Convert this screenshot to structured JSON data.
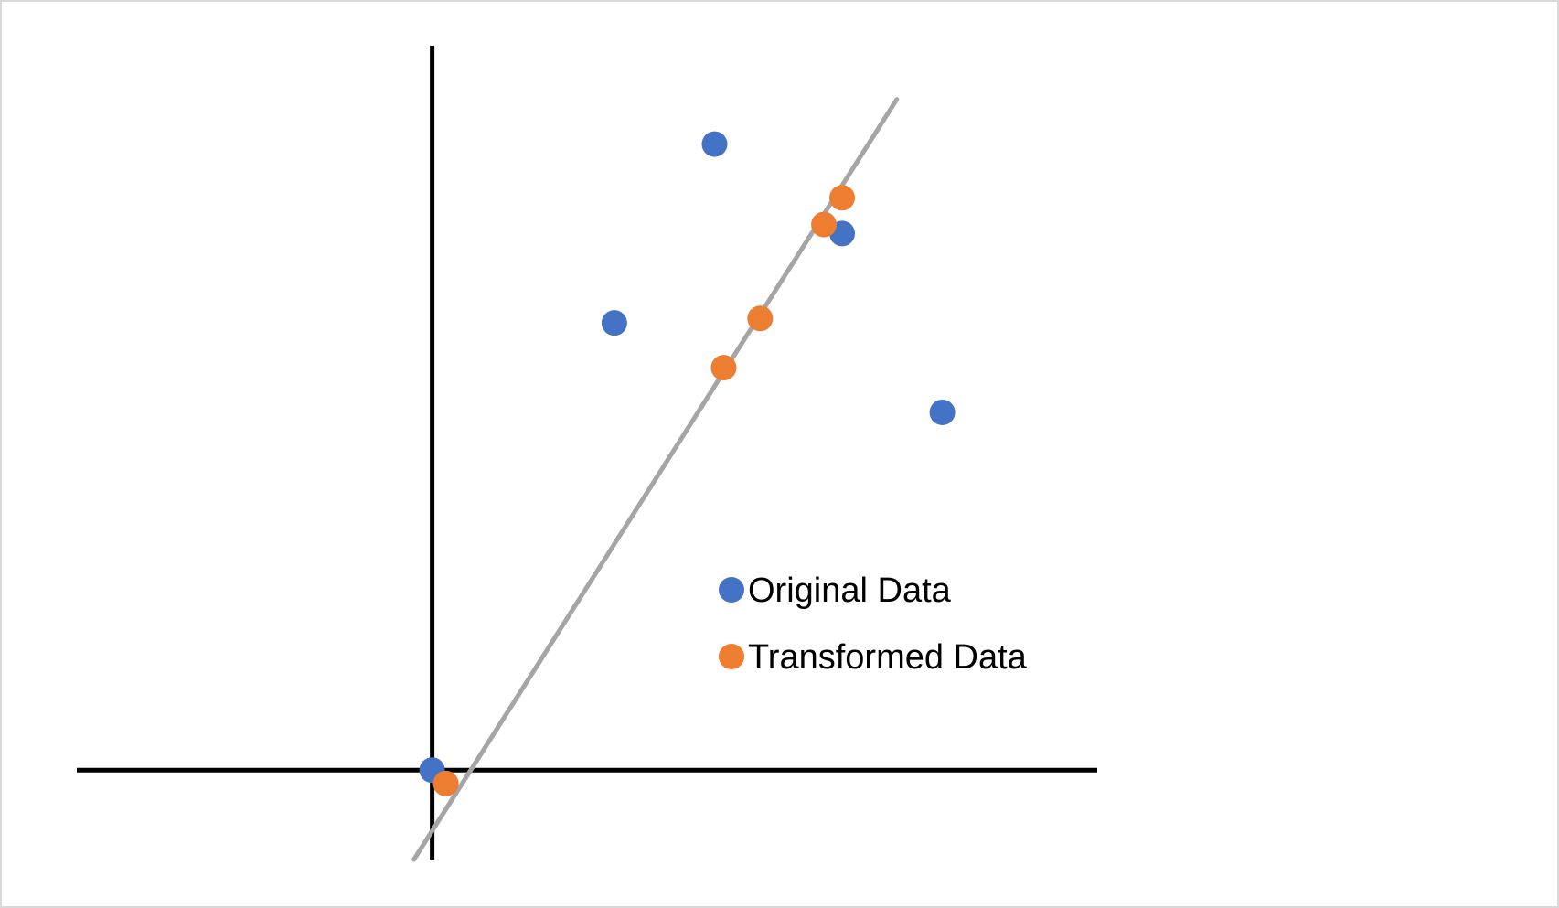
{
  "chart_data": {
    "type": "scatter",
    "title": "",
    "xlabel": "",
    "ylabel": "",
    "xlim": [
      -3.9,
      7.3
    ],
    "ylim": [
      -1.0,
      8.1
    ],
    "grid": false,
    "axes_visible": true,
    "tick_labels_visible": false,
    "legend_position": "inside-center-right",
    "series": [
      {
        "name": "Original Data",
        "color": "#4472C4",
        "points": [
          {
            "x": 0.0,
            "y": 0.0
          },
          {
            "x": 2.0,
            "y": 5.0
          },
          {
            "x": 3.1,
            "y": 7.0
          },
          {
            "x": 4.5,
            "y": 6.0
          },
          {
            "x": 5.6,
            "y": 4.0
          }
        ]
      },
      {
        "name": "Transformed Data",
        "color": "#ED7D31",
        "points": [
          {
            "x": 0.15,
            "y": -0.15
          },
          {
            "x": 3.2,
            "y": 4.5
          },
          {
            "x": 3.6,
            "y": 5.05
          },
          {
            "x": 4.3,
            "y": 6.1
          },
          {
            "x": 4.5,
            "y": 6.4
          }
        ]
      }
    ],
    "trendline": {
      "color": "#A5A5A5",
      "from": {
        "x": -0.2,
        "y": -1.0
      },
      "to": {
        "x": 5.1,
        "y": 7.5
      }
    }
  }
}
